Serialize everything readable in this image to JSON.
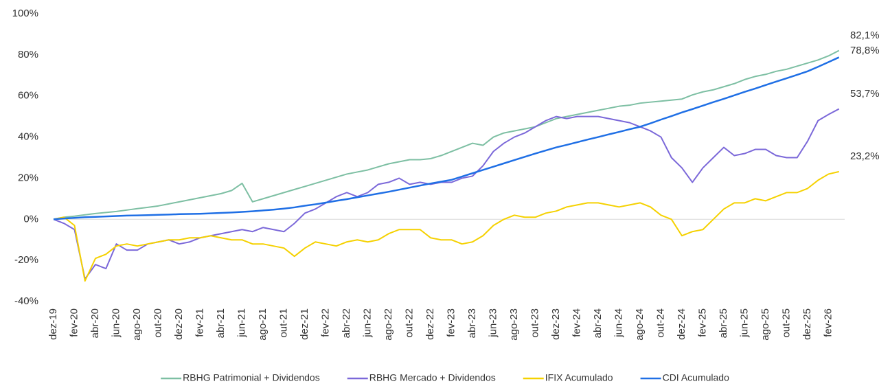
{
  "chart_data": {
    "type": "line",
    "categories": [
      "dez-19",
      null,
      "fev-20",
      null,
      "abr-20",
      null,
      "jun-20",
      null,
      "ago-20",
      null,
      "out-20",
      null,
      "dez-20",
      null,
      "fev-21",
      null,
      "abr-21",
      null,
      "jun-21",
      null,
      "ago-21",
      null,
      "out-21",
      null,
      "dez-21",
      null,
      "fev-22",
      null,
      "abr-22",
      null,
      "jun-22",
      null,
      "ago-22",
      null,
      "out-22",
      null,
      "dez-22",
      null,
      "fev-23",
      null,
      "abr-23",
      null,
      "jun-23",
      null,
      "ago-23",
      null,
      "out-23",
      null,
      "dez-23",
      null,
      "fev-24",
      null,
      "abr-24",
      null,
      "jun-24",
      null,
      "ago-24",
      null,
      "out-24",
      null,
      "dez-24",
      null,
      "fev-25",
      null,
      "abr-25",
      null,
      "jun-25",
      null,
      "ago-25",
      null,
      "out-25",
      null,
      "dez-25",
      null,
      "fev-26",
      null
    ],
    "series": [
      {
        "name": "RBHG Patrimonial + Dividendos",
        "color": "#7dbfa3",
        "values": [
          0,
          1,
          1.5,
          2.2,
          2.8,
          3.3,
          3.8,
          4.5,
          5.2,
          5.8,
          6.5,
          7.5,
          8.5,
          9.5,
          10.5,
          11.5,
          12.5,
          14,
          17.5,
          8.5,
          10,
          11.5,
          13,
          14.5,
          16,
          17.5,
          19,
          20.5,
          22,
          23,
          24,
          25.5,
          27,
          28,
          29,
          29,
          29.5,
          31,
          33,
          35,
          37,
          36,
          40,
          42,
          43,
          44,
          45,
          47,
          49,
          50,
          51,
          52,
          53,
          54,
          55,
          55.5,
          56.5,
          57,
          57.5,
          58,
          58.5,
          60.5,
          62,
          63,
          64.5,
          66,
          68,
          69.5,
          70.5,
          72,
          73,
          74.5,
          76,
          77.5,
          79.5,
          82.1
        ],
        "value_labels": [
          null,
          null,
          null,
          null,
          null,
          null,
          null,
          null,
          null,
          null,
          null,
          null,
          null,
          null,
          null,
          null,
          null,
          null,
          null,
          null,
          null,
          null,
          null,
          null,
          null,
          null,
          null,
          null,
          null,
          null,
          null,
          null,
          null,
          null,
          null,
          null,
          null,
          null,
          null,
          null,
          null,
          null,
          null,
          null,
          null,
          null,
          null,
          null,
          null,
          null,
          null,
          null,
          null,
          null,
          null,
          null,
          null,
          null,
          null,
          null,
          null,
          null,
          null,
          null,
          null,
          null,
          null,
          null,
          null,
          null,
          null,
          null,
          null,
          null,
          null,
          "82,1%"
        ]
      },
      {
        "name": "RBHG Mercado + Dividendos",
        "color": "#7b68d9",
        "values": [
          0,
          -2,
          -5,
          -29,
          -22,
          -24,
          -12,
          -15,
          -15,
          -12,
          -11,
          -10,
          -12,
          -11,
          -9,
          -8,
          -7,
          -6,
          -5,
          -6,
          -4,
          -5,
          -6,
          -2,
          3,
          5,
          8,
          11,
          13,
          11,
          13,
          17,
          18,
          20,
          17,
          18,
          17,
          18,
          18,
          20,
          21,
          26,
          33,
          37,
          40,
          42,
          45,
          48,
          50,
          49,
          50,
          50,
          50,
          49,
          48,
          47,
          45,
          43,
          40,
          30,
          25,
          18,
          25,
          30,
          35,
          31,
          32,
          34,
          34,
          31,
          30,
          30,
          38,
          48,
          51,
          53.7
        ],
        "value_labels": [
          null,
          null,
          null,
          null,
          null,
          null,
          null,
          null,
          null,
          null,
          null,
          null,
          null,
          null,
          null,
          null,
          null,
          null,
          null,
          null,
          null,
          null,
          null,
          null,
          null,
          null,
          null,
          null,
          null,
          null,
          null,
          null,
          null,
          null,
          null,
          null,
          null,
          null,
          null,
          null,
          null,
          null,
          null,
          null,
          null,
          null,
          null,
          null,
          null,
          null,
          null,
          null,
          null,
          null,
          null,
          null,
          null,
          null,
          null,
          null,
          null,
          null,
          null,
          null,
          null,
          null,
          null,
          null,
          null,
          null,
          null,
          null,
          null,
          null,
          null,
          "53,7%"
        ]
      },
      {
        "name": "IFIX Acumulado",
        "color": "#f5d100",
        "values": [
          0,
          1,
          -3,
          -30,
          -19,
          -17,
          -13,
          -12,
          -13,
          -12,
          -11,
          -10,
          -10,
          -9,
          -9,
          -8,
          -9,
          -10,
          -10,
          -12,
          -12,
          -13,
          -14,
          -18,
          -14,
          -11,
          -12,
          -13,
          -11,
          -10,
          -11,
          -10,
          -7,
          -5,
          -5,
          -5,
          -9,
          -10,
          -10,
          -12,
          -11,
          -8,
          -3,
          0,
          2,
          1,
          1,
          3,
          4,
          6,
          7,
          8,
          8,
          7,
          6,
          7,
          8,
          6,
          2,
          0,
          -8,
          -6,
          -5,
          0,
          5,
          8,
          8,
          10,
          9,
          11,
          13,
          13,
          15,
          19,
          22,
          23.2
        ],
        "value_labels": [
          null,
          null,
          null,
          null,
          null,
          null,
          null,
          null,
          null,
          null,
          null,
          null,
          null,
          null,
          null,
          null,
          null,
          null,
          null,
          null,
          null,
          null,
          null,
          null,
          null,
          null,
          null,
          null,
          null,
          null,
          null,
          null,
          null,
          null,
          null,
          null,
          null,
          null,
          null,
          null,
          null,
          null,
          null,
          null,
          null,
          null,
          null,
          null,
          null,
          null,
          null,
          null,
          null,
          null,
          null,
          null,
          null,
          null,
          null,
          null,
          null,
          null,
          null,
          null,
          null,
          null,
          null,
          null,
          null,
          null,
          null,
          null,
          null,
          null,
          null,
          "23,2%"
        ]
      },
      {
        "name": "CDI Acumulado",
        "color": "#1f6fe5",
        "values": [
          0,
          0.4,
          0.7,
          1.0,
          1.2,
          1.4,
          1.6,
          1.8,
          1.9,
          2.0,
          2.2,
          2.3,
          2.5,
          2.6,
          2.7,
          2.9,
          3.1,
          3.3,
          3.6,
          3.9,
          4.3,
          4.7,
          5.2,
          5.8,
          6.6,
          7.3,
          8.1,
          9.0,
          9.8,
          10.7,
          11.6,
          12.5,
          13.4,
          14.4,
          15.4,
          16.4,
          17.4,
          18.3,
          19.2,
          20.8,
          22.4,
          24.0,
          25.6,
          27.2,
          28.8,
          30.4,
          32.0,
          33.5,
          35.0,
          36.2,
          37.5,
          38.8,
          40.0,
          41.3,
          42.5,
          43.8,
          45.0,
          46.7,
          48.5,
          50.2,
          52.0,
          53.6,
          55.3,
          57.0,
          58.6,
          60.3,
          62.0,
          63.6,
          65.3,
          67.0,
          68.6,
          70.3,
          72.0,
          74.2,
          76.5,
          78.8
        ],
        "value_labels": [
          null,
          null,
          null,
          null,
          null,
          null,
          null,
          null,
          null,
          null,
          null,
          null,
          null,
          null,
          null,
          null,
          null,
          null,
          null,
          null,
          null,
          null,
          null,
          null,
          null,
          null,
          null,
          null,
          null,
          null,
          null,
          null,
          null,
          null,
          null,
          null,
          null,
          null,
          null,
          null,
          null,
          null,
          null,
          null,
          null,
          null,
          null,
          null,
          null,
          null,
          null,
          null,
          null,
          null,
          null,
          null,
          null,
          null,
          null,
          null,
          null,
          null,
          null,
          null,
          null,
          null,
          null,
          null,
          null,
          null,
          null,
          null,
          null,
          null,
          null,
          "78,8%"
        ]
      }
    ],
    "ylim": [
      -40,
      100
    ],
    "yticks": [
      {
        "value": -40,
        "label": "-40%"
      },
      {
        "value": -20,
        "label": "-20%"
      },
      {
        "value": 0,
        "label": "0%"
      },
      {
        "value": 20,
        "label": "20%"
      },
      {
        "value": 40,
        "label": "40%"
      },
      {
        "value": 60,
        "label": "60%"
      },
      {
        "value": 80,
        "label": "80%"
      },
      {
        "value": 100,
        "label": "100%"
      }
    ],
    "grid": false,
    "legend": "bottom"
  }
}
